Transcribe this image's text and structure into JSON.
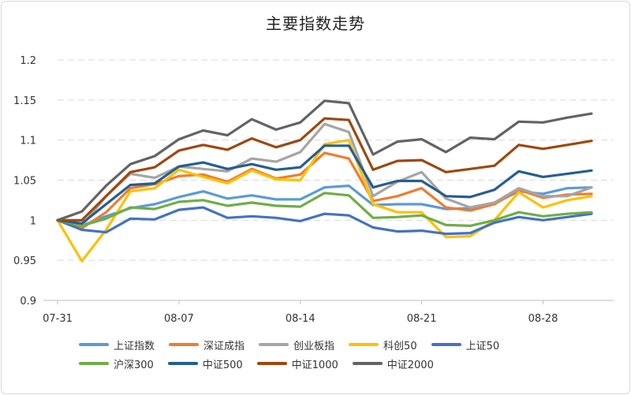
{
  "chart_data": {
    "type": "line",
    "title": "主要指数走势",
    "ylim": [
      0.9,
      1.2
    ],
    "yticks": [
      "0.9",
      "0.95",
      "1",
      "1.05",
      "1.1",
      "1.15",
      "1.2"
    ],
    "x": [
      "07-31",
      "08-01",
      "08-02",
      "08-05",
      "08-06",
      "08-07",
      "08-08",
      "08-09",
      "08-12",
      "08-13",
      "08-14",
      "08-15",
      "08-16",
      "08-19",
      "08-20",
      "08-21",
      "08-22",
      "08-23",
      "08-26",
      "08-27",
      "08-28",
      "08-29",
      "08-30"
    ],
    "x_tick_labels": [
      "07-31",
      "08-07",
      "08-14",
      "08-21",
      "08-28"
    ],
    "grid": true,
    "legend_position": "bottom",
    "series": [
      {
        "name": "上证指数",
        "color": "#5b9bd5",
        "values": [
          1.0,
          0.993,
          1.005,
          1.015,
          1.02,
          1.029,
          1.036,
          1.027,
          1.031,
          1.026,
          1.026,
          1.041,
          1.043,
          1.019,
          1.02,
          1.02,
          1.014,
          1.015,
          1.021,
          1.036,
          1.033,
          1.04,
          1.041
        ]
      },
      {
        "name": "深证成指",
        "color": "#ed7d31",
        "values": [
          1.0,
          0.99,
          1.01,
          1.04,
          1.045,
          1.055,
          1.057,
          1.048,
          1.064,
          1.052,
          1.057,
          1.084,
          1.077,
          1.024,
          1.03,
          1.04,
          1.016,
          1.012,
          1.02,
          1.038,
          1.028,
          1.032,
          1.033
        ]
      },
      {
        "name": "创业板指",
        "color": "#a5a5a5",
        "values": [
          1.0,
          0.993,
          1.03,
          1.058,
          1.053,
          1.067,
          1.064,
          1.061,
          1.077,
          1.073,
          1.085,
          1.12,
          1.11,
          1.03,
          1.048,
          1.06,
          1.027,
          1.016,
          1.022,
          1.04,
          1.03,
          1.03,
          1.041
        ]
      },
      {
        "name": "科创50",
        "color": "#ffc000",
        "values": [
          1.0,
          0.949,
          0.988,
          1.036,
          1.04,
          1.063,
          1.054,
          1.046,
          1.062,
          1.051,
          1.05,
          1.095,
          1.1,
          1.02,
          1.01,
          1.01,
          0.979,
          0.98,
          1.0,
          1.035,
          1.016,
          1.025,
          1.03
        ]
      },
      {
        "name": "上证50",
        "color": "#4472c4",
        "values": [
          1.0,
          0.988,
          0.985,
          1.002,
          1.001,
          1.013,
          1.016,
          1.003,
          1.005,
          1.003,
          0.999,
          1.008,
          1.006,
          0.991,
          0.986,
          0.987,
          0.983,
          0.984,
          0.997,
          1.004,
          1.0,
          1.004,
          1.008
        ]
      },
      {
        "name": "沪深300",
        "color": "#70ad47",
        "values": [
          1.0,
          0.993,
          1.002,
          1.016,
          1.014,
          1.023,
          1.025,
          1.018,
          1.022,
          1.018,
          1.017,
          1.034,
          1.031,
          1.003,
          1.004,
          1.006,
          0.994,
          0.993,
          1.0,
          1.01,
          1.005,
          1.008,
          1.01
        ]
      },
      {
        "name": "中证500",
        "color": "#255e91",
        "values": [
          1.0,
          0.996,
          1.02,
          1.044,
          1.046,
          1.067,
          1.072,
          1.064,
          1.07,
          1.063,
          1.066,
          1.093,
          1.093,
          1.041,
          1.049,
          1.049,
          1.03,
          1.029,
          1.038,
          1.061,
          1.054,
          1.058,
          1.062
        ]
      },
      {
        "name": "中证1000",
        "color": "#9e480e",
        "values": [
          1.0,
          1.0,
          1.03,
          1.06,
          1.066,
          1.087,
          1.094,
          1.088,
          1.102,
          1.091,
          1.1,
          1.127,
          1.125,
          1.063,
          1.074,
          1.075,
          1.06,
          1.064,
          1.068,
          1.094,
          1.089,
          1.094,
          1.099
        ]
      },
      {
        "name": "中证2000",
        "color": "#636363",
        "values": [
          1.0,
          1.011,
          1.043,
          1.07,
          1.08,
          1.101,
          1.112,
          1.106,
          1.126,
          1.113,
          1.122,
          1.149,
          1.146,
          1.082,
          1.098,
          1.101,
          1.085,
          1.103,
          1.101,
          1.123,
          1.122,
          1.128,
          1.133
        ]
      }
    ]
  }
}
